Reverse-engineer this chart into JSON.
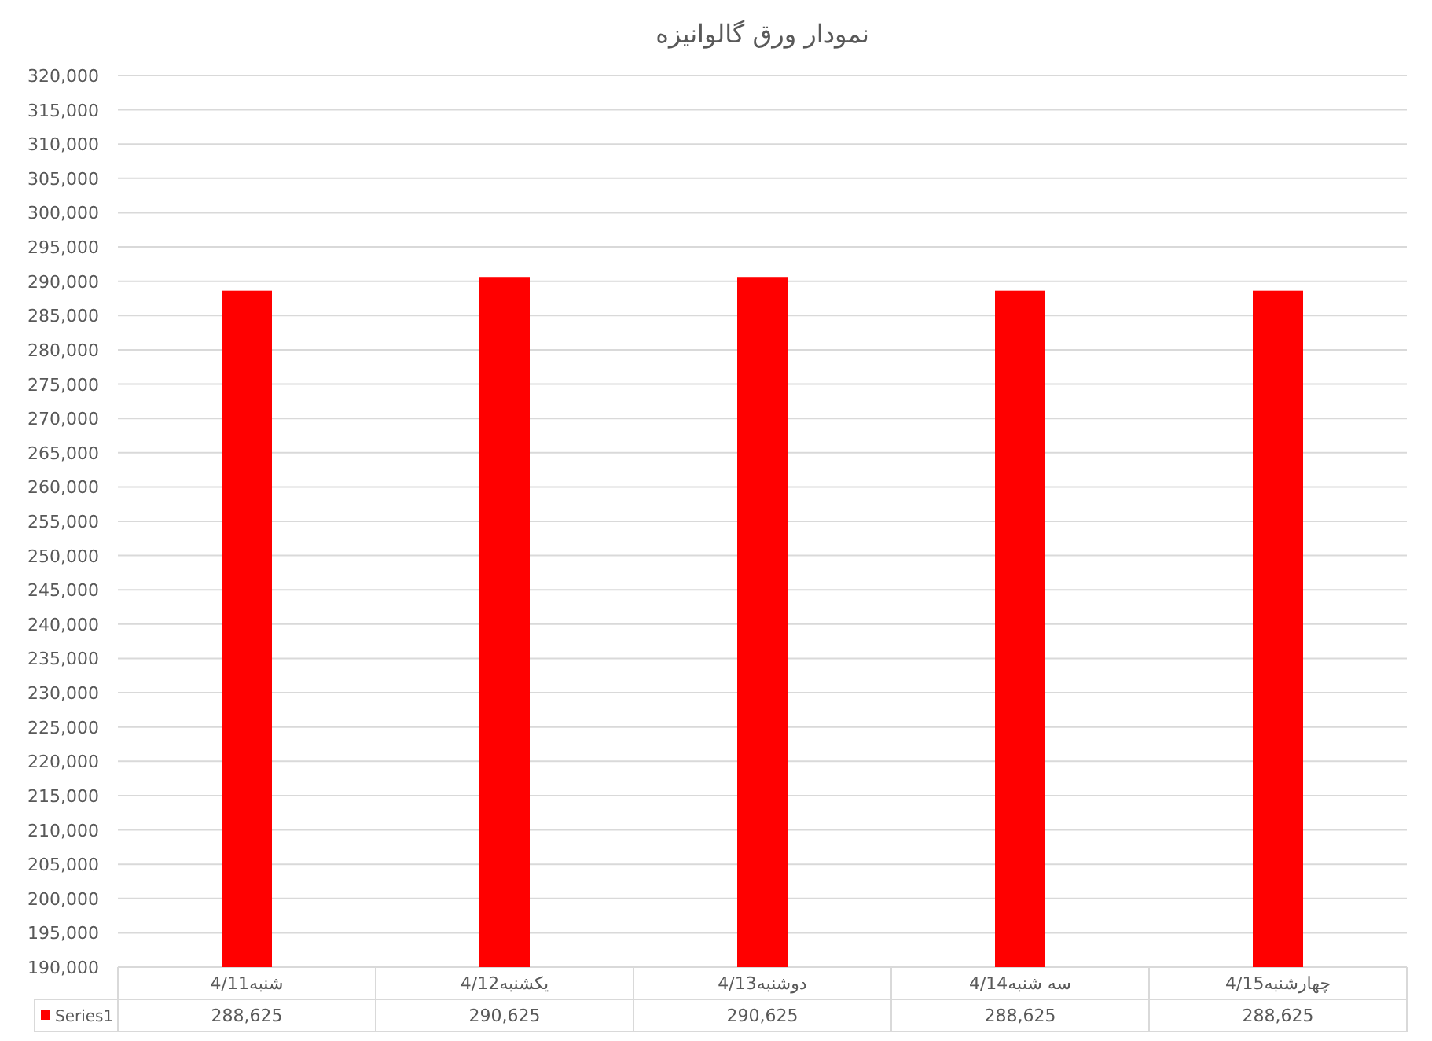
{
  "chart_data": {
    "type": "bar",
    "title": "نمودار ورق گالوانیزه",
    "categories": [
      "شنبه4/11",
      "یکشنبه4/12",
      "دوشنبه4/13",
      "سه شنبه4/14",
      "چهارشنبه4/15"
    ],
    "series": [
      {
        "name": "Series1",
        "color": "#ff0000",
        "values": [
          288625,
          290625,
          290625,
          288625,
          288625
        ],
        "value_labels": [
          "288,625",
          "290,625",
          "290,625",
          "288,625",
          "288,625"
        ]
      }
    ],
    "ylim": [
      190000,
      320000
    ],
    "yticks": [
      {
        "value": 190000,
        "label": "190,000"
      },
      {
        "value": 195000,
        "label": "195,000"
      },
      {
        "value": 200000,
        "label": "200,000"
      },
      {
        "value": 205000,
        "label": "205,000"
      },
      {
        "value": 210000,
        "label": "210,000"
      },
      {
        "value": 215000,
        "label": "215,000"
      },
      {
        "value": 220000,
        "label": "220,000"
      },
      {
        "value": 225000,
        "label": "225,000"
      },
      {
        "value": 230000,
        "label": "230,000"
      },
      {
        "value": 235000,
        "label": "235,000"
      },
      {
        "value": 240000,
        "label": "240,000"
      },
      {
        "value": 245000,
        "label": "245,000"
      },
      {
        "value": 250000,
        "label": "250,000"
      },
      {
        "value": 255000,
        "label": "255,000"
      },
      {
        "value": 260000,
        "label": "260,000"
      },
      {
        "value": 265000,
        "label": "265,000"
      },
      {
        "value": 270000,
        "label": "270,000"
      },
      {
        "value": 275000,
        "label": "275,000"
      },
      {
        "value": 280000,
        "label": "280,000"
      },
      {
        "value": 285000,
        "label": "285,000"
      },
      {
        "value": 290000,
        "label": "290,000"
      },
      {
        "value": 295000,
        "label": "295,000"
      },
      {
        "value": 300000,
        "label": "300,000"
      },
      {
        "value": 305000,
        "label": "305,000"
      },
      {
        "value": 310000,
        "label": "310,000"
      },
      {
        "value": 315000,
        "label": "315,000"
      },
      {
        "value": 320000,
        "label": "320,000"
      }
    ],
    "grid": "y"
  }
}
